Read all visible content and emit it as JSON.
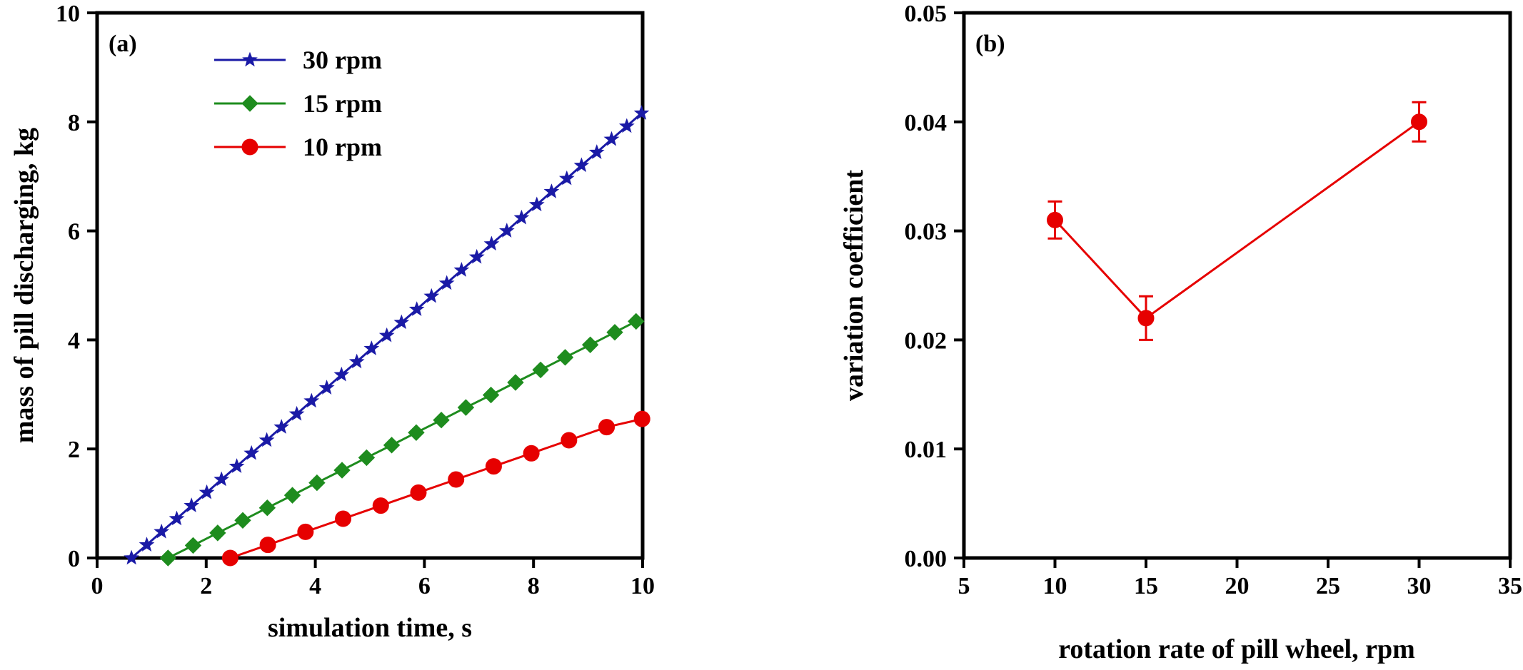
{
  "chart_data": [
    {
      "panel": "(a)",
      "type": "line",
      "xlabel": "simulation time, s",
      "ylabel": "mass of pill discharging, kg",
      "xlim": [
        0,
        10
      ],
      "ylim": [
        0,
        10
      ],
      "xticks": [
        0,
        2,
        4,
        6,
        8,
        10
      ],
      "yticks": [
        0,
        2,
        4,
        6,
        8,
        10
      ],
      "legend_position": "upper-left",
      "series": [
        {
          "name": "30 rpm",
          "color": "#1a1aa6",
          "marker": "star",
          "x": [
            0.63,
            0.91,
            1.18,
            1.46,
            1.73,
            2.01,
            2.28,
            2.56,
            2.83,
            3.11,
            3.38,
            3.66,
            3.93,
            4.21,
            4.48,
            4.76,
            5.03,
            5.31,
            5.58,
            5.86,
            6.13,
            6.41,
            6.68,
            6.96,
            7.23,
            7.51,
            7.78,
            8.06,
            8.33,
            8.61,
            8.88,
            9.16,
            9.43,
            9.71,
            9.98
          ],
          "y": [
            0.0,
            0.24,
            0.48,
            0.72,
            0.96,
            1.2,
            1.44,
            1.68,
            1.92,
            2.16,
            2.4,
            2.64,
            2.88,
            3.12,
            3.36,
            3.6,
            3.84,
            4.08,
            4.32,
            4.56,
            4.8,
            5.04,
            5.28,
            5.52,
            5.76,
            6.0,
            6.24,
            6.48,
            6.72,
            6.96,
            7.2,
            7.44,
            7.68,
            7.92,
            8.16
          ]
        },
        {
          "name": "15 rpm",
          "color": "#1e8c1e",
          "marker": "diamond",
          "x": [
            1.3,
            1.76,
            2.21,
            2.67,
            3.12,
            3.58,
            4.03,
            4.49,
            4.94,
            5.4,
            5.85,
            6.31,
            6.76,
            7.22,
            7.67,
            8.13,
            8.58,
            9.04,
            9.49,
            9.88
          ],
          "y": [
            0.0,
            0.23,
            0.46,
            0.69,
            0.92,
            1.15,
            1.38,
            1.61,
            1.84,
            2.07,
            2.3,
            2.53,
            2.76,
            2.99,
            3.22,
            3.45,
            3.68,
            3.91,
            4.14,
            4.34
          ]
        },
        {
          "name": "10 rpm",
          "color": "#e60000",
          "marker": "circle",
          "x": [
            2.44,
            3.13,
            3.82,
            4.51,
            5.2,
            5.89,
            6.58,
            7.27,
            7.96,
            8.65,
            9.34,
            9.99
          ],
          "y": [
            0.0,
            0.24,
            0.48,
            0.72,
            0.96,
            1.2,
            1.44,
            1.68,
            1.92,
            2.16,
            2.4,
            2.55
          ]
        }
      ]
    },
    {
      "panel": "(b)",
      "type": "line",
      "xlabel": "rotation rate of pill wheel, rpm",
      "ylabel": "variation coefficient",
      "xlim": [
        5,
        35
      ],
      "ylim": [
        0.0,
        0.05
      ],
      "xticks": [
        5,
        10,
        15,
        20,
        25,
        30,
        35
      ],
      "yticks": [
        "0.00",
        "0.01",
        "0.02",
        "0.03",
        "0.04",
        "0.05"
      ],
      "series": [
        {
          "name": "variation coefficient",
          "color": "#e60000",
          "marker": "circle",
          "x": [
            10,
            15,
            30
          ],
          "y": [
            0.031,
            0.022,
            0.04
          ],
          "error": [
            0.0017,
            0.002,
            0.0018
          ]
        }
      ]
    }
  ]
}
